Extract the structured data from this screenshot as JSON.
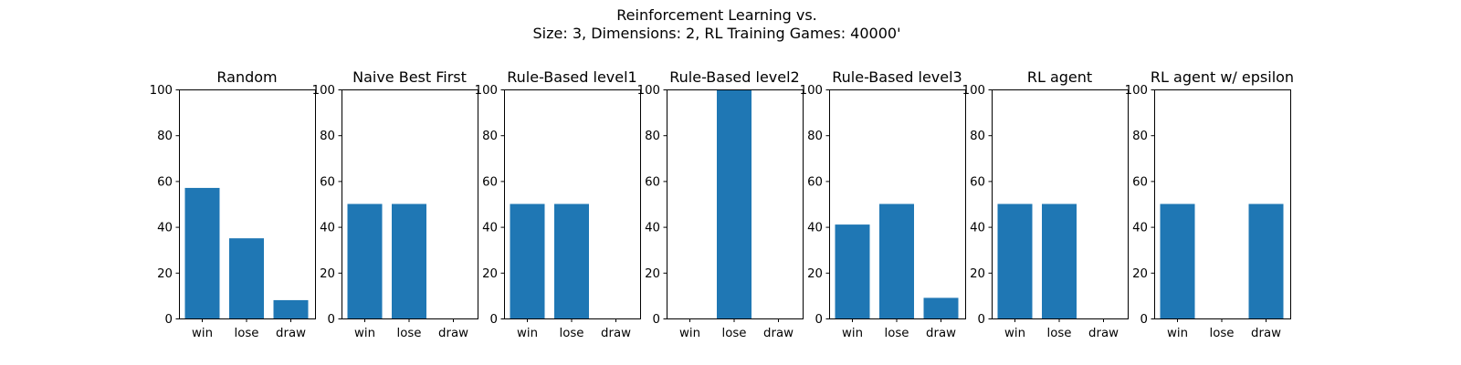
{
  "figure": {
    "title_line1": "Reinforcement Learning vs.",
    "title_line2": "Size: 3, Dimensions: 2, RL Training Games: 40000'"
  },
  "chart_data": [
    {
      "type": "bar",
      "title": "Random",
      "categories": [
        "win",
        "lose",
        "draw"
      ],
      "values": [
        57,
        35,
        8
      ],
      "ylim": [
        0,
        100
      ],
      "yticks": [
        0,
        20,
        40,
        60,
        80,
        100
      ],
      "color": "#1f77b4"
    },
    {
      "type": "bar",
      "title": "Naive Best First",
      "categories": [
        "win",
        "lose",
        "draw"
      ],
      "values": [
        50,
        50,
        0
      ],
      "ylim": [
        0,
        100
      ],
      "yticks": [
        0,
        20,
        40,
        60,
        80,
        100
      ],
      "color": "#1f77b4"
    },
    {
      "type": "bar",
      "title": "Rule-Based level1",
      "categories": [
        "win",
        "lose",
        "draw"
      ],
      "values": [
        50,
        50,
        0
      ],
      "ylim": [
        0,
        100
      ],
      "yticks": [
        0,
        20,
        40,
        60,
        80,
        100
      ],
      "color": "#1f77b4"
    },
    {
      "type": "bar",
      "title": "Rule-Based level2",
      "categories": [
        "win",
        "lose",
        "draw"
      ],
      "values": [
        0,
        100,
        0
      ],
      "ylim": [
        0,
        100
      ],
      "yticks": [
        0,
        20,
        40,
        60,
        80,
        100
      ],
      "color": "#1f77b4"
    },
    {
      "type": "bar",
      "title": "Rule-Based level3",
      "categories": [
        "win",
        "lose",
        "draw"
      ],
      "values": [
        41,
        50,
        9
      ],
      "ylim": [
        0,
        100
      ],
      "yticks": [
        0,
        20,
        40,
        60,
        80,
        100
      ],
      "color": "#1f77b4"
    },
    {
      "type": "bar",
      "title": "RL agent",
      "categories": [
        "win",
        "lose",
        "draw"
      ],
      "values": [
        50,
        50,
        0
      ],
      "ylim": [
        0,
        100
      ],
      "yticks": [
        0,
        20,
        40,
        60,
        80,
        100
      ],
      "color": "#1f77b4"
    },
    {
      "type": "bar",
      "title": "RL agent w/ epsilon",
      "categories": [
        "win",
        "lose",
        "draw"
      ],
      "values": [
        50,
        0,
        50
      ],
      "ylim": [
        0,
        100
      ],
      "yticks": [
        0,
        20,
        40,
        60,
        80,
        100
      ],
      "color": "#1f77b4"
    }
  ]
}
